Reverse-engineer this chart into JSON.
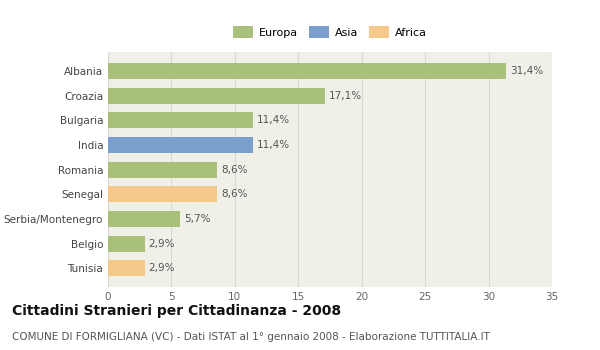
{
  "categories": [
    "Tunisia",
    "Belgio",
    "Serbia/Montenegro",
    "Senegal",
    "Romania",
    "India",
    "Bulgaria",
    "Croazia",
    "Albania"
  ],
  "values": [
    2.9,
    2.9,
    5.7,
    8.6,
    8.6,
    11.4,
    11.4,
    17.1,
    31.4
  ],
  "labels": [
    "2,9%",
    "2,9%",
    "5,7%",
    "8,6%",
    "8,6%",
    "11,4%",
    "11,4%",
    "17,1%",
    "31,4%"
  ],
  "colors": [
    "#f5c98a",
    "#a8c07a",
    "#a8c07a",
    "#f5c98a",
    "#a8c07a",
    "#7b9fcc",
    "#a8c07a",
    "#a8c07a",
    "#a8c07a"
  ],
  "legend": [
    {
      "label": "Europa",
      "color": "#a8c07a"
    },
    {
      "label": "Asia",
      "color": "#7b9fcc"
    },
    {
      "label": "Africa",
      "color": "#f5c98a"
    }
  ],
  "xlim": [
    0,
    35
  ],
  "xticks": [
    0,
    5,
    10,
    15,
    20,
    25,
    30,
    35
  ],
  "title": "Cittadini Stranieri per Cittadinanza - 2008",
  "subtitle": "COMUNE DI FORMIGLIANA (VC) - Dati ISTAT al 1° gennaio 2008 - Elaborazione TUTTITALIA.IT",
  "bar_height": 0.65,
  "plot_bg_color": "#f0f0e8",
  "fig_bg_color": "#ffffff",
  "grid_color": "#d8d8d0",
  "label_fontsize": 7.5,
  "ytick_fontsize": 7.5,
  "xtick_fontsize": 7.5,
  "title_fontsize": 10,
  "subtitle_fontsize": 7.5,
  "legend_fontsize": 8
}
